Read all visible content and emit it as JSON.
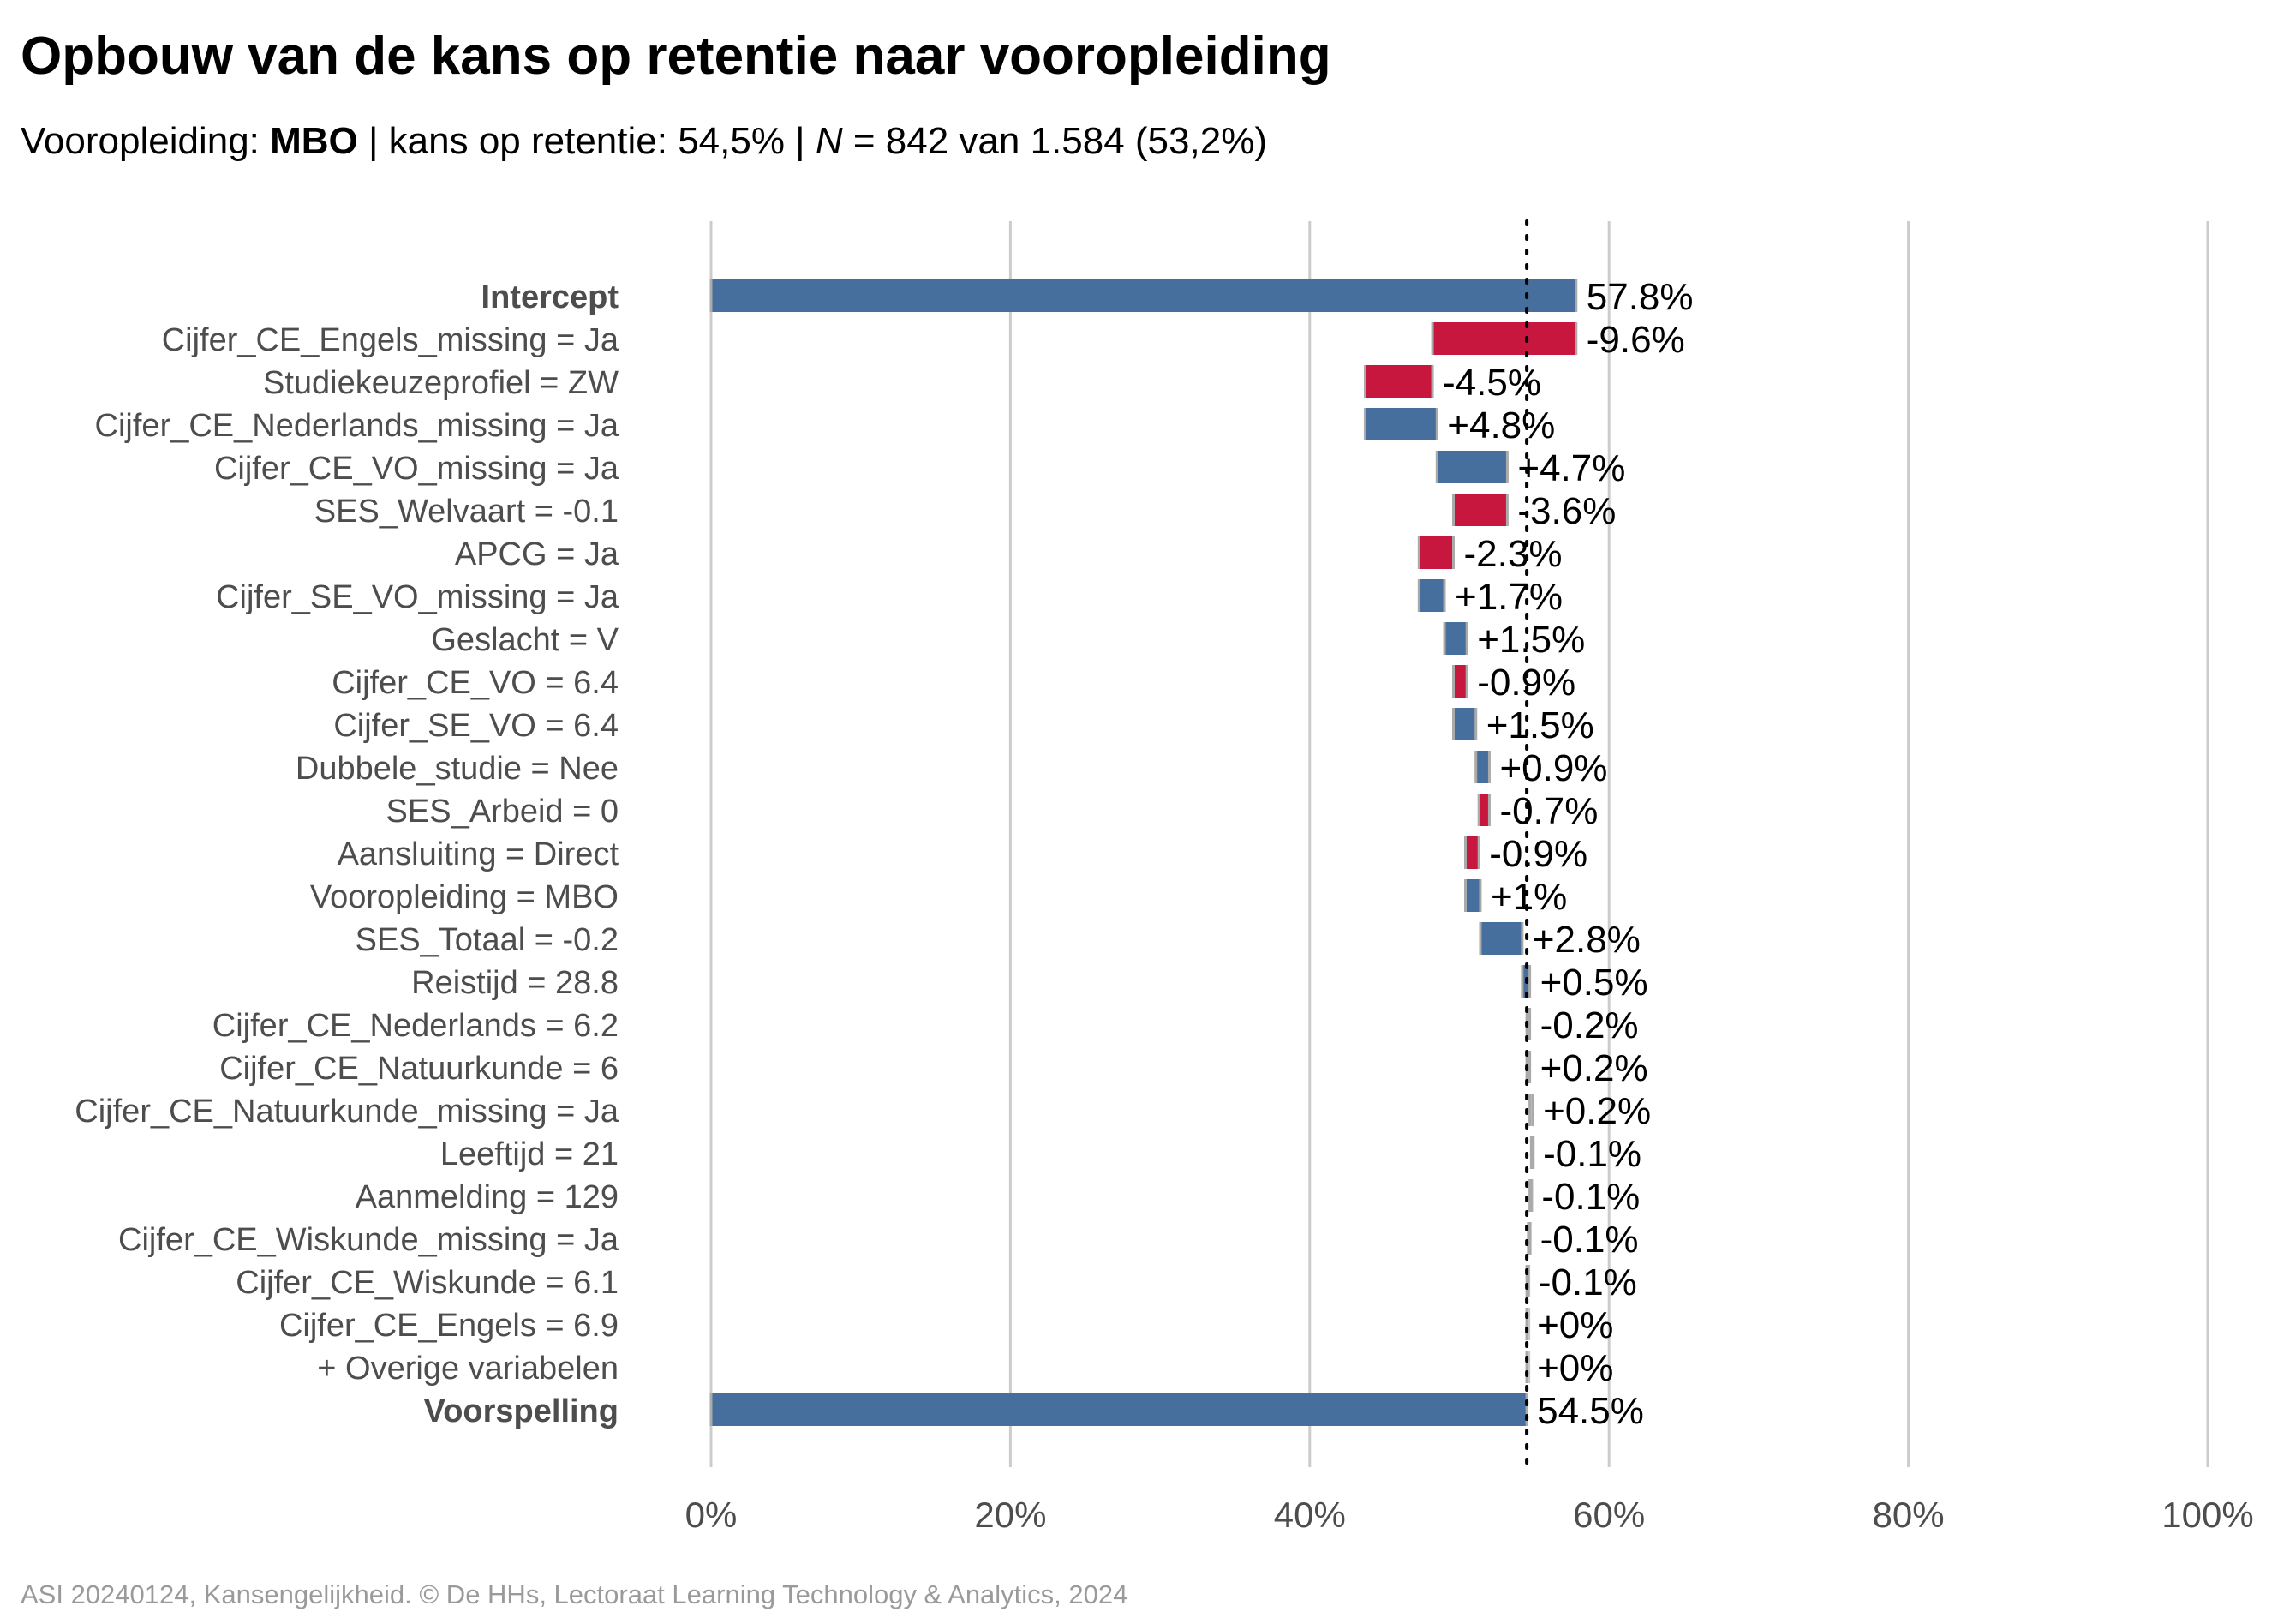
{
  "title": "Opbouw van de kans op retentie naar vooropleiding",
  "subtitle": {
    "prefix": "Vooropleiding: ",
    "group": "MBO",
    "middle": " | kans op retentie: 54,5% | ",
    "n_symbol": "N",
    "suffix": " = 842 van 1.584 (53,2%)"
  },
  "caption": "ASI 20240124, Kansengelijkheid. © De HHs, Lectoraat Learning Technology & Analytics, 2024",
  "colors": {
    "positive": "#476f9e",
    "negative": "#c8173f",
    "neutral": "#c8c8c8",
    "grid": "#cccccc",
    "axis_text": "#4d4d4d",
    "label_text": "#000000"
  },
  "chart_data": {
    "type": "waterfall",
    "xlim": [
      0,
      100
    ],
    "x_ticks": [
      0,
      20,
      40,
      60,
      80,
      100
    ],
    "x_tick_labels": [
      "0%",
      "20%",
      "40%",
      "60%",
      "80%",
      "100%"
    ],
    "reference_line": 54.5,
    "grid": true,
    "rows": [
      {
        "label": "Intercept",
        "kind": "total",
        "value": 57.8,
        "text": "57.8%",
        "bold": true
      },
      {
        "label": "Cijfer_CE_Engels_missing = Ja",
        "kind": "step",
        "value": -9.6,
        "text": "-9.6%"
      },
      {
        "label": "Studiekeuzeprofiel = ZW",
        "kind": "step",
        "value": -4.5,
        "text": "-4.5%"
      },
      {
        "label": "Cijfer_CE_Nederlands_missing = Ja",
        "kind": "step",
        "value": 4.8,
        "text": "+4.8%"
      },
      {
        "label": "Cijfer_CE_VO_missing = Ja",
        "kind": "step",
        "value": 4.7,
        "text": "+4.7%"
      },
      {
        "label": "SES_Welvaart = -0.1",
        "kind": "step",
        "value": -3.6,
        "text": "-3.6%"
      },
      {
        "label": "APCG = Ja",
        "kind": "step",
        "value": -2.3,
        "text": "-2.3%"
      },
      {
        "label": "Cijfer_SE_VO_missing = Ja",
        "kind": "step",
        "value": 1.7,
        "text": "+1.7%"
      },
      {
        "label": "Geslacht = V",
        "kind": "step",
        "value": 1.5,
        "text": "+1.5%"
      },
      {
        "label": "Cijfer_CE_VO = 6.4",
        "kind": "step",
        "value": -0.9,
        "text": "-0.9%"
      },
      {
        "label": "Cijfer_SE_VO = 6.4",
        "kind": "step",
        "value": 1.5,
        "text": "+1.5%"
      },
      {
        "label": "Dubbele_studie = Nee",
        "kind": "step",
        "value": 0.9,
        "text": "+0.9%"
      },
      {
        "label": "SES_Arbeid = 0",
        "kind": "step",
        "value": -0.7,
        "text": "-0.7%"
      },
      {
        "label": "Aansluiting = Direct",
        "kind": "step",
        "value": -0.9,
        "text": "-0.9%"
      },
      {
        "label": "Vooropleiding = MBO",
        "kind": "step",
        "value": 1.0,
        "text": "+1%"
      },
      {
        "label": "SES_Totaal = -0.2",
        "kind": "step",
        "value": 2.8,
        "text": "+2.8%"
      },
      {
        "label": "Reistijd = 28.8",
        "kind": "step",
        "value": 0.5,
        "text": "+0.5%"
      },
      {
        "label": "Cijfer_CE_Nederlands = 6.2",
        "kind": "step",
        "value": -0.2,
        "text": "-0.2%"
      },
      {
        "label": "Cijfer_CE_Natuurkunde = 6",
        "kind": "step",
        "value": 0.2,
        "text": "+0.2%"
      },
      {
        "label": "Cijfer_CE_Natuurkunde_missing = Ja",
        "kind": "step",
        "value": 0.2,
        "text": "+0.2%"
      },
      {
        "label": "Leeftijd = 21",
        "kind": "step",
        "value": -0.1,
        "text": "-0.1%"
      },
      {
        "label": "Aanmelding = 129",
        "kind": "step",
        "value": -0.1,
        "text": "-0.1%"
      },
      {
        "label": "Cijfer_CE_Wiskunde_missing = Ja",
        "kind": "step",
        "value": -0.1,
        "text": "-0.1%"
      },
      {
        "label": "Cijfer_CE_Wiskunde = 6.1",
        "kind": "step",
        "value": -0.1,
        "text": "-0.1%"
      },
      {
        "label": "Cijfer_CE_Engels = 6.9",
        "kind": "step",
        "value": 0.0,
        "text": "+0%"
      },
      {
        "label": "+ Overige variabelen",
        "kind": "step",
        "value": 0.0,
        "text": "+0%"
      },
      {
        "label": "Voorspelling",
        "kind": "total",
        "value": 54.5,
        "text": "54.5%",
        "bold": true
      }
    ]
  }
}
